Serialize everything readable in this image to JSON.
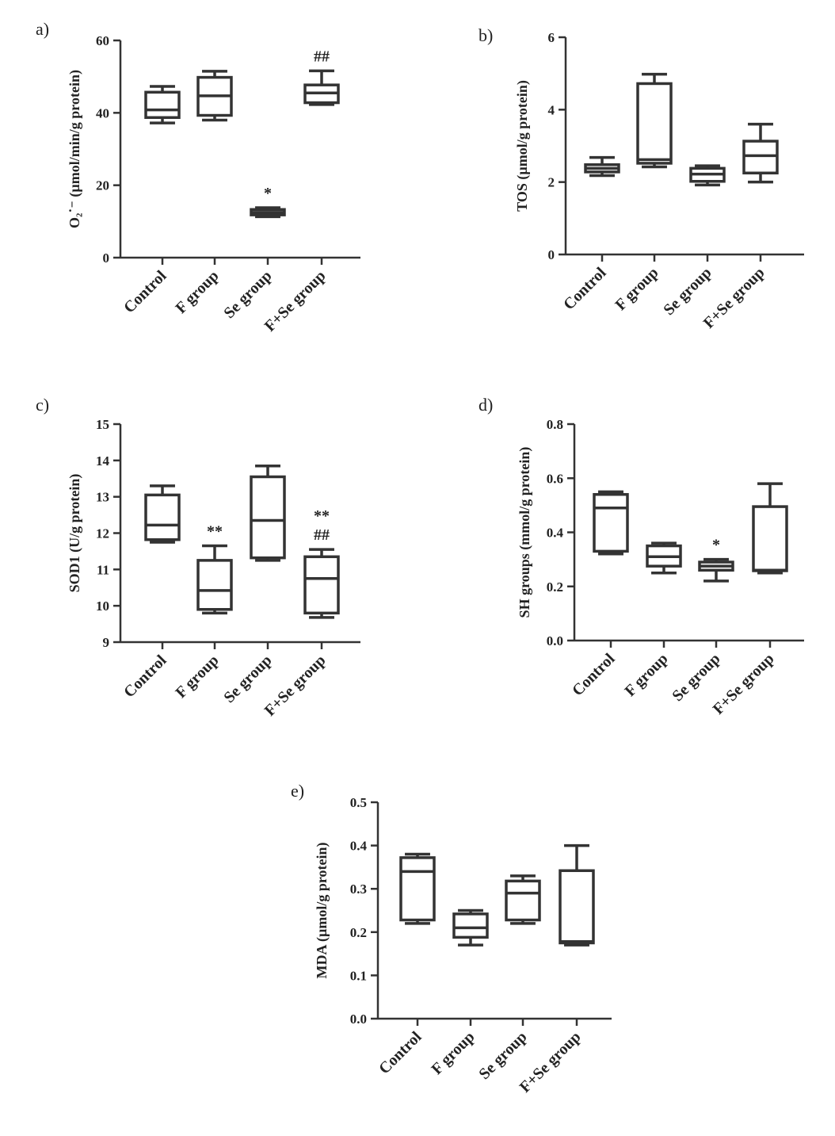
{
  "chart_data": [
    {
      "id": "a",
      "type": "boxplot",
      "panel_label": "a)",
      "ylabel": "O₂˙⁻ (µmol/min/g protein)",
      "ylim": [
        0,
        60
      ],
      "yticks": [
        0,
        20,
        40,
        60
      ],
      "tick_labels": [
        "0",
        "20",
        "40",
        "60"
      ],
      "categories": [
        "Control",
        "F group",
        "Se group",
        "F+Se group"
      ],
      "boxes": [
        {
          "min": 37.2,
          "q1": 38.7,
          "median": 40.8,
          "q3": 45.7,
          "max": 47.3
        },
        {
          "min": 38.0,
          "q1": 39.3,
          "median": 44.7,
          "q3": 49.8,
          "max": 51.5
        },
        {
          "min": 11.3,
          "q1": 11.8,
          "median": 12.5,
          "q3": 13.3,
          "max": 13.8
        },
        {
          "min": 42.3,
          "q1": 42.8,
          "median": 45.5,
          "q3": 47.7,
          "max": 51.6
        }
      ],
      "annotations": [
        {
          "category": 2,
          "lines": [
            "*"
          ]
        },
        {
          "category": 3,
          "lines": [
            "##"
          ]
        }
      ]
    },
    {
      "id": "b",
      "type": "boxplot",
      "panel_label": "b)",
      "ylabel": "TOS (µmol/g protein)",
      "ylim": [
        0,
        6
      ],
      "yticks": [
        0,
        2,
        4,
        6
      ],
      "tick_labels": [
        "0",
        "2",
        "4",
        "6"
      ],
      "categories": [
        "Control",
        "F group",
        "Se group",
        "F+Se group"
      ],
      "boxes": [
        {
          "min": 2.18,
          "q1": 2.28,
          "median": 2.38,
          "q3": 2.48,
          "max": 2.68
        },
        {
          "min": 2.42,
          "q1": 2.52,
          "median": 2.62,
          "q3": 4.72,
          "max": 4.98
        },
        {
          "min": 1.92,
          "q1": 2.02,
          "median": 2.22,
          "q3": 2.38,
          "max": 2.45
        },
        {
          "min": 2.0,
          "q1": 2.25,
          "median": 2.73,
          "q3": 3.13,
          "max": 3.6
        }
      ],
      "annotations": []
    },
    {
      "id": "c",
      "type": "boxplot",
      "panel_label": "c)",
      "ylabel": "SOD1 (U/g protein)",
      "ylim": [
        9,
        15
      ],
      "yticks": [
        9,
        10,
        11,
        12,
        13,
        14,
        15
      ],
      "tick_labels": [
        "9",
        "10",
        "11",
        "12",
        "13",
        "14",
        "15"
      ],
      "categories": [
        "Control",
        "F group",
        "Se group",
        "F+Se group"
      ],
      "boxes": [
        {
          "min": 11.75,
          "q1": 11.82,
          "median": 12.22,
          "q3": 13.05,
          "max": 13.3
        },
        {
          "min": 9.8,
          "q1": 9.9,
          "median": 10.42,
          "q3": 11.25,
          "max": 11.65
        },
        {
          "min": 11.25,
          "q1": 11.32,
          "median": 12.35,
          "q3": 13.55,
          "max": 13.85
        },
        {
          "min": 9.68,
          "q1": 9.8,
          "median": 10.75,
          "q3": 11.35,
          "max": 11.55
        }
      ],
      "annotations": [
        {
          "category": 1,
          "lines": [
            "**"
          ]
        },
        {
          "category": 3,
          "lines": [
            "**",
            "##"
          ]
        }
      ]
    },
    {
      "id": "d",
      "type": "boxplot",
      "panel_label": "d)",
      "ylabel": "SH groups (mmol/g protein)",
      "ylim": [
        0,
        0.8
      ],
      "yticks": [
        0,
        0.2,
        0.4,
        0.6,
        0.8
      ],
      "tick_labels": [
        "0.0",
        "0.2",
        "0.4",
        "0.6",
        "0.8"
      ],
      "categories": [
        "Control",
        "F group",
        "Se group",
        "F+Se group"
      ],
      "boxes": [
        {
          "min": 0.32,
          "q1": 0.33,
          "median": 0.49,
          "q3": 0.54,
          "max": 0.55
        },
        {
          "min": 0.25,
          "q1": 0.275,
          "median": 0.31,
          "q3": 0.35,
          "max": 0.36
        },
        {
          "min": 0.22,
          "q1": 0.26,
          "median": 0.275,
          "q3": 0.29,
          "max": 0.3
        },
        {
          "min": 0.25,
          "q1": 0.258,
          "median": 0.26,
          "q3": 0.495,
          "max": 0.58
        }
      ],
      "annotations": [
        {
          "category": 2,
          "lines": [
            "*"
          ]
        }
      ]
    },
    {
      "id": "e",
      "type": "boxplot",
      "panel_label": "e)",
      "ylabel": "MDA (µmol/g protein)",
      "ylim": [
        0,
        0.5
      ],
      "yticks": [
        0,
        0.1,
        0.2,
        0.3,
        0.4,
        0.5
      ],
      "tick_labels": [
        "0.0",
        "0.1",
        "0.2",
        "0.3",
        "0.4",
        "0.5"
      ],
      "categories": [
        "Control",
        "F group",
        "Se group",
        "F+Se group"
      ],
      "boxes": [
        {
          "min": 0.22,
          "q1": 0.228,
          "median": 0.34,
          "q3": 0.372,
          "max": 0.38
        },
        {
          "min": 0.17,
          "q1": 0.188,
          "median": 0.21,
          "q3": 0.242,
          "max": 0.25
        },
        {
          "min": 0.22,
          "q1": 0.228,
          "median": 0.29,
          "q3": 0.318,
          "max": 0.33
        },
        {
          "min": 0.17,
          "q1": 0.175,
          "median": 0.178,
          "q3": 0.342,
          "max": 0.4
        }
      ],
      "annotations": []
    }
  ]
}
